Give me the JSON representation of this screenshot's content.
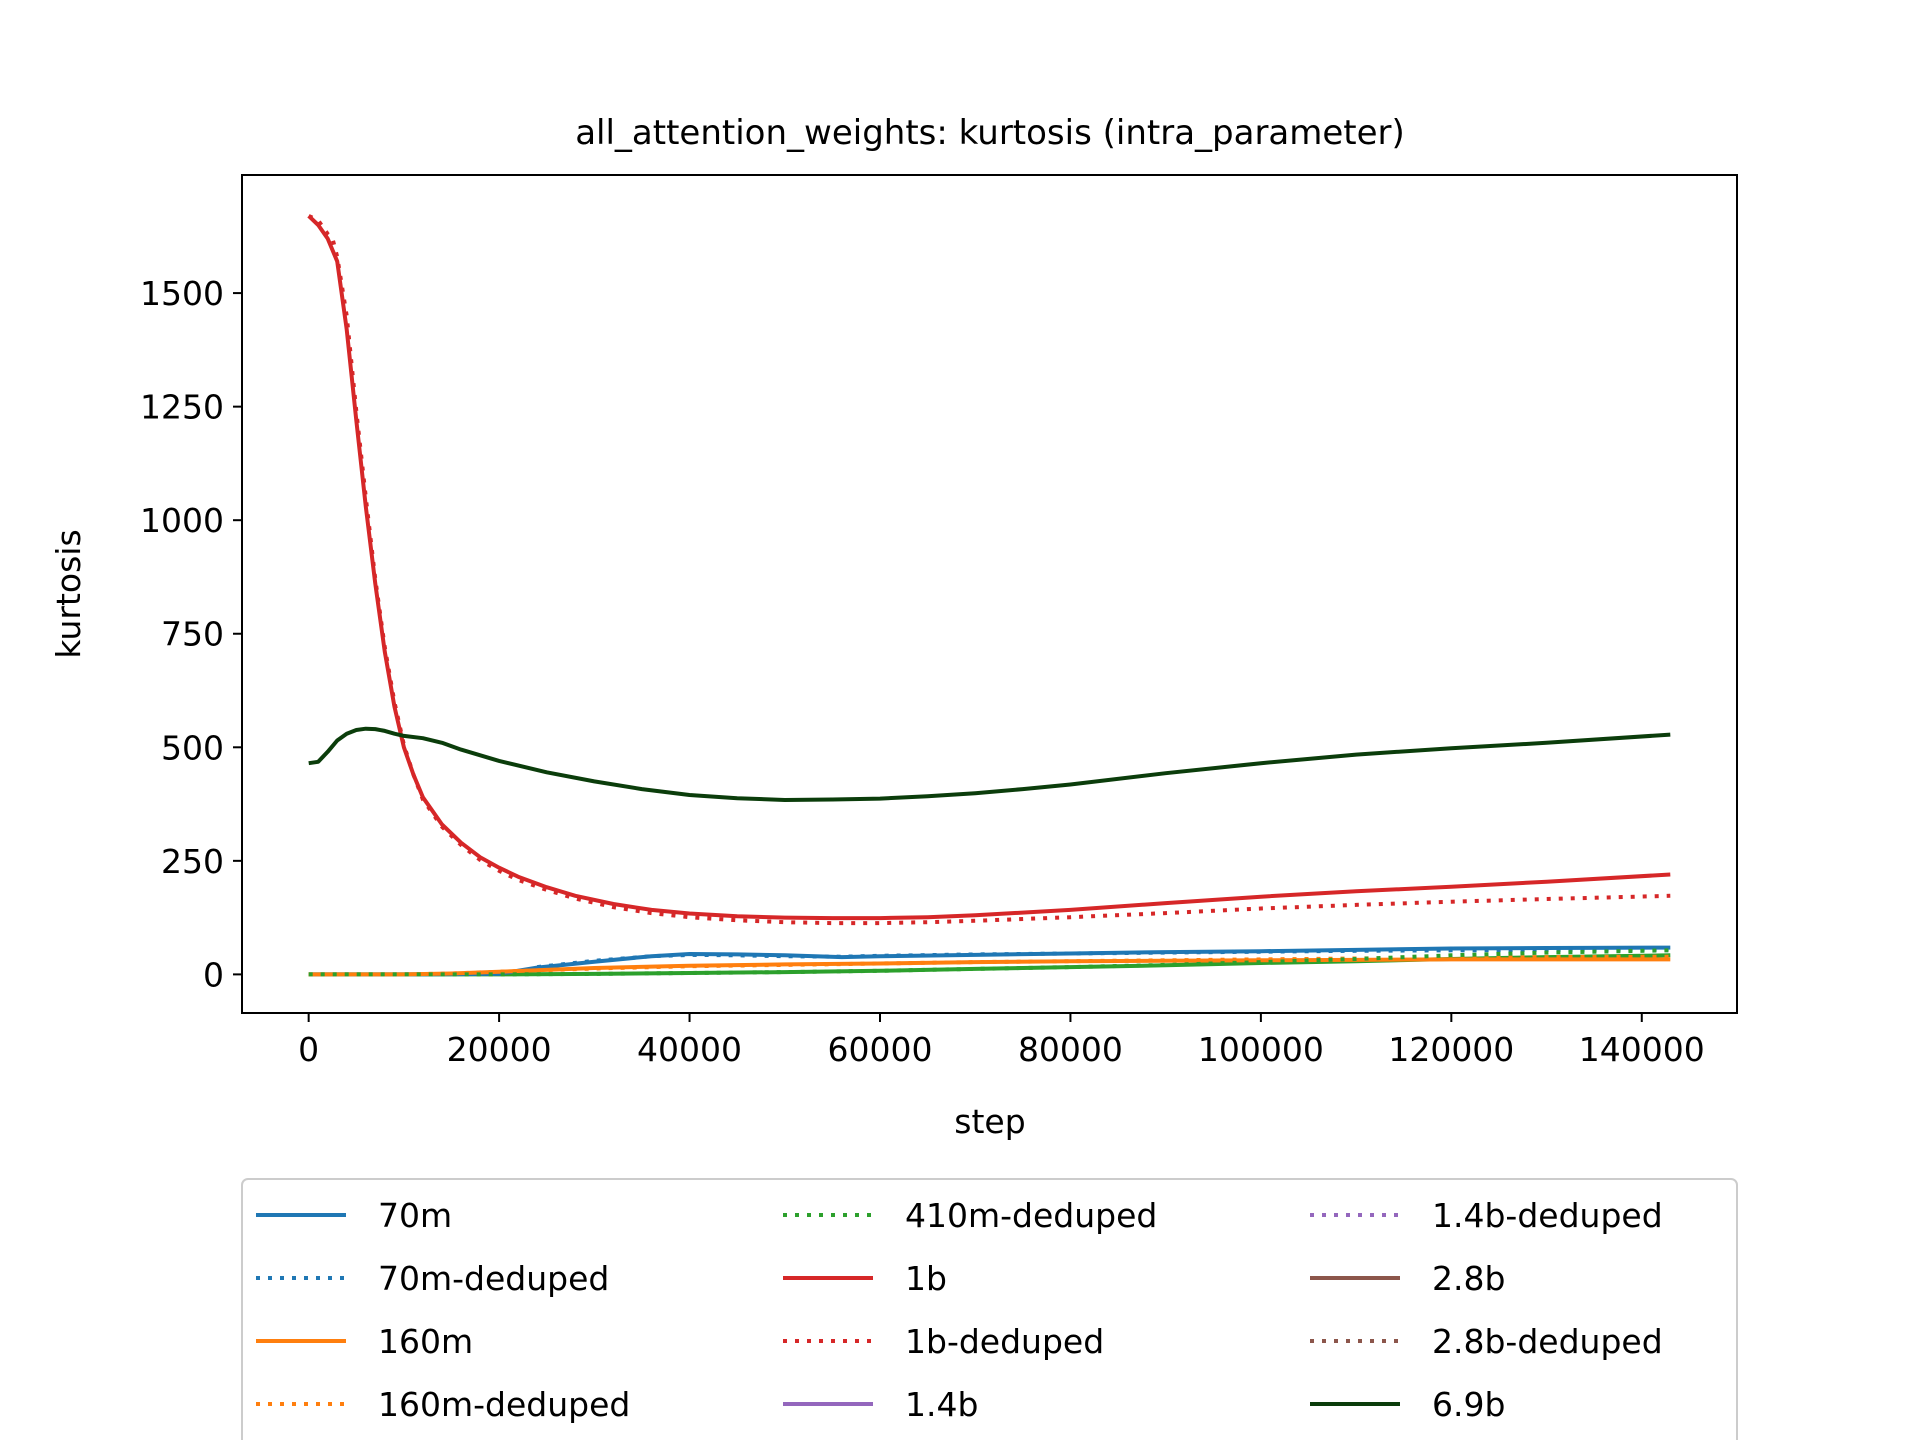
{
  "chart_data": {
    "type": "line",
    "title": "all_attention_weights: kurtosis (intra_parameter)",
    "xlabel": "step",
    "ylabel": "kurtosis",
    "xlim": [
      -7000,
      150000
    ],
    "ylim": [
      -85,
      1760
    ],
    "xticks": [
      0,
      20000,
      40000,
      60000,
      80000,
      100000,
      120000,
      140000
    ],
    "yticks": [
      0,
      250,
      500,
      750,
      1000,
      1250,
      1500
    ],
    "grid": false,
    "legend_placement": "below-plot",
    "series": [
      {
        "name": "70m",
        "color": "#1f77b4",
        "dash": "solid",
        "x": [
          0,
          10000,
          20000,
          24000,
          30000,
          36000,
          40000,
          45000,
          50000,
          56000,
          60000,
          70000,
          80000,
          90000,
          100000,
          110000,
          120000,
          130000,
          143000
        ],
        "y": [
          0,
          0,
          1,
          15,
          28,
          40,
          45,
          44,
          42,
          38,
          40,
          43,
          46,
          49,
          51,
          54,
          57,
          58,
          59
        ]
      },
      {
        "name": "70m-deduped",
        "color": "#1f77b4",
        "dash": "dotted",
        "x": [
          24000,
          30000,
          36000,
          40000,
          45000,
          50000,
          56000,
          60000,
          70000,
          80000,
          90000,
          100000,
          110000,
          120000,
          130000,
          143000
        ],
        "y": [
          16,
          30,
          40,
          43,
          42,
          40,
          39,
          41,
          44,
          46,
          48,
          50,
          52,
          53,
          54,
          55
        ]
      },
      {
        "name": "160m",
        "color": "#ff7f0e",
        "dash": "solid",
        "x": [
          0,
          10000,
          15000,
          20000,
          30000,
          40000,
          50000,
          60000,
          70000,
          80000,
          90000,
          100000,
          110000,
          120000,
          130000,
          143000
        ],
        "y": [
          0,
          0,
          2,
          6,
          14,
          19,
          22,
          24,
          27,
          29,
          30,
          31,
          32,
          33,
          33,
          33
        ]
      },
      {
        "name": "160m-deduped",
        "color": "#ff7f0e",
        "dash": "dotted",
        "x": [
          0,
          10000,
          15000,
          20000,
          30000,
          40000,
          50000,
          60000,
          70000,
          80000,
          90000,
          100000,
          110000,
          120000,
          130000,
          143000
        ],
        "y": [
          0,
          0,
          2,
          6,
          13,
          18,
          21,
          24,
          27,
          29,
          31,
          33,
          35,
          37,
          38,
          39
        ]
      },
      {
        "name": "410m-deduped",
        "color": "#2ca02c",
        "dash": "dotted",
        "x": [
          0,
          20000,
          30000,
          40000,
          50000,
          60000,
          70000,
          80000,
          90000,
          100000,
          110000,
          120000,
          130000,
          143000
        ],
        "y": [
          0,
          0,
          1,
          3,
          5,
          8,
          12,
          16,
          21,
          27,
          34,
          42,
          48,
          53
        ]
      },
      {
        "name": "1b",
        "color": "#d62728",
        "dash": "solid",
        "x": [
          0,
          1000,
          2000,
          3000,
          4000,
          5000,
          6000,
          7000,
          8000,
          9000,
          10000,
          11000,
          12000,
          14000,
          16000,
          18000,
          20000,
          22000,
          25000,
          28000,
          32000,
          36000,
          40000,
          45000,
          50000,
          55000,
          60000,
          65000,
          70000,
          80000,
          90000,
          100000,
          110000,
          120000,
          130000,
          143000
        ],
        "y": [
          1670,
          1650,
          1620,
          1570,
          1420,
          1220,
          1030,
          860,
          710,
          590,
          500,
          440,
          390,
          330,
          290,
          258,
          235,
          215,
          192,
          173,
          155,
          142,
          134,
          128,
          125,
          124,
          124,
          126,
          130,
          142,
          157,
          171,
          183,
          193,
          204,
          220
        ]
      },
      {
        "name": "1b-deduped",
        "color": "#d62728",
        "dash": "dotted",
        "x": [
          0,
          1000,
          2000,
          2500,
          3000,
          4000,
          5000,
          6000,
          7000,
          8000,
          9000,
          10000,
          11000,
          12000,
          14000,
          16000,
          18000,
          20000,
          22000,
          25000,
          28000,
          32000,
          36000,
          40000,
          45000,
          50000,
          55000,
          60000,
          65000,
          70000,
          80000,
          90000,
          100000,
          110000,
          120000,
          130000,
          143000
        ],
        "y": [
          1670,
          1660,
          1630,
          1620,
          1580,
          1450,
          1240,
          1050,
          870,
          720,
          600,
          505,
          440,
          385,
          325,
          285,
          252,
          228,
          208,
          186,
          167,
          148,
          135,
          126,
          119,
          115,
          113,
          113,
          115,
          118,
          126,
          135,
          145,
          153,
          160,
          166,
          173
        ]
      },
      {
        "name": "1.4b",
        "color": "#9467bd",
        "dash": "solid",
        "x": [],
        "y": []
      },
      {
        "name": "1.4b-deduped",
        "color": "#9467bd",
        "dash": "dotted",
        "x": [],
        "y": []
      },
      {
        "name": "2.8b",
        "color": "#8c564b",
        "dash": "solid",
        "x": [],
        "y": []
      },
      {
        "name": "2.8b-deduped",
        "color": "#8c564b",
        "dash": "dotted",
        "x": [],
        "y": []
      },
      {
        "name": "6.9b",
        "color": "#0b3d0b",
        "dash": "solid",
        "x": [
          0,
          1000,
          2000,
          3000,
          4000,
          5000,
          6000,
          7000,
          8000,
          9000,
          10000,
          12000,
          14000,
          16000,
          20000,
          25000,
          30000,
          35000,
          40000,
          45000,
          50000,
          55000,
          60000,
          65000,
          70000,
          75000,
          80000,
          90000,
          100000,
          110000,
          120000,
          130000,
          143000
        ],
        "y": [
          465,
          468,
          490,
          515,
          530,
          538,
          541,
          540,
          536,
          530,
          525,
          520,
          510,
          495,
          470,
          445,
          425,
          408,
          395,
          388,
          384,
          385,
          387,
          392,
          399,
          408,
          418,
          443,
          465,
          484,
          498,
          510,
          528
        ]
      }
    ]
  },
  "series_410m": {
    "name": "410m",
    "color": "#2ca02c",
    "dash": "solid",
    "x": [
      0,
      20000,
      30000,
      40000,
      50000,
      60000,
      70000,
      80000,
      90000,
      100000,
      110000,
      120000,
      130000,
      143000
    ],
    "y": [
      0,
      0,
      1,
      3,
      5,
      8,
      12,
      16,
      20,
      25,
      29,
      34,
      38,
      42
    ]
  }
}
